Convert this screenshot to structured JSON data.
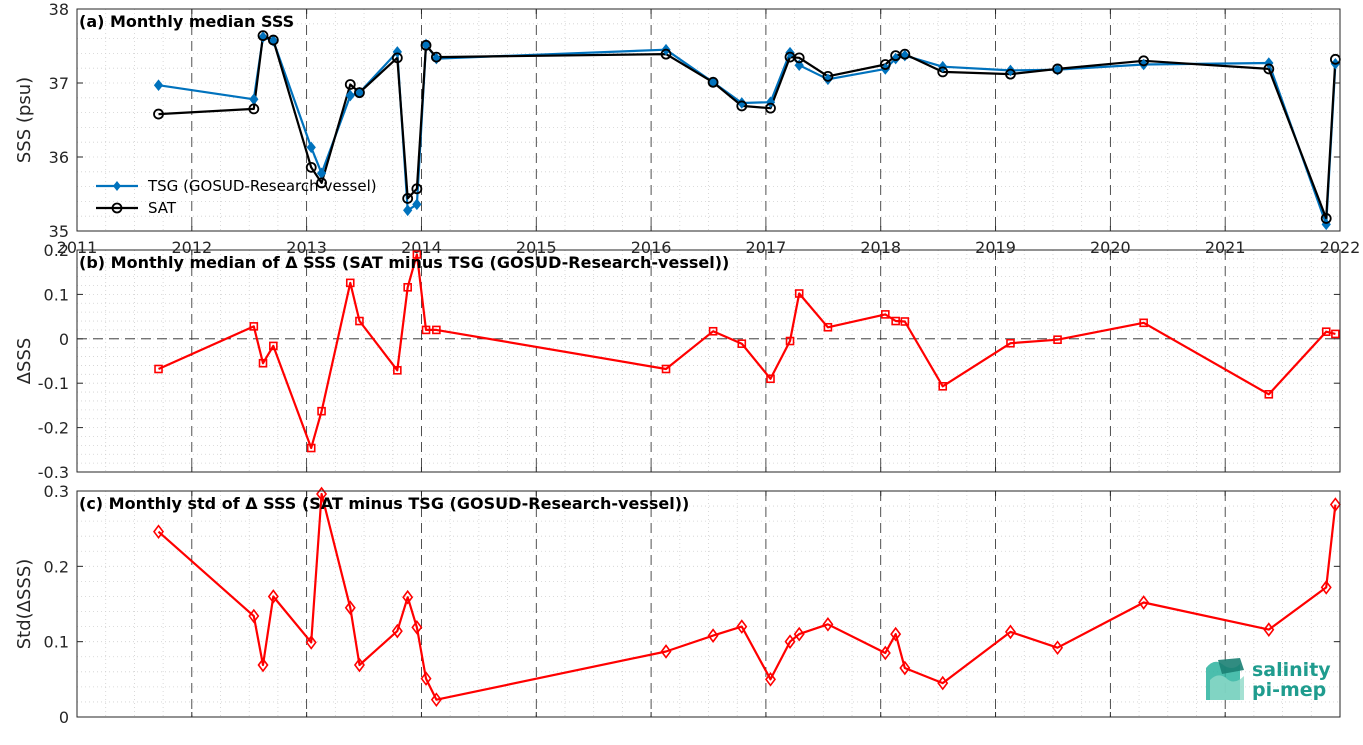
{
  "chart_data": [
    {
      "type": "line",
      "title": "(a) Monthly median SSS",
      "ylabel": "SSS (psu)",
      "xlim": [
        2011,
        2022
      ],
      "ylim": [
        35,
        38
      ],
      "xticks": [
        "2011",
        "2012",
        "2013",
        "2014",
        "2015",
        "2016",
        "2017",
        "2018",
        "2019",
        "2020",
        "2021",
        "2022"
      ],
      "yticks": [
        "35",
        "36",
        "37",
        "38"
      ],
      "grid": true,
      "legend": "lower-left",
      "series": [
        {
          "name": "TSG (GOSUD-Research-vessel)",
          "color": "#0072bd",
          "marker": "filled-diamond",
          "x": [
            2011.71,
            2012.54,
            2012.62,
            2012.71,
            2013.04,
            2013.13,
            2013.38,
            2013.46,
            2013.79,
            2013.88,
            2013.96,
            2014.04,
            2014.13,
            2016.13,
            2016.54,
            2016.79,
            2017.04,
            2017.21,
            2017.29,
            2017.54,
            2018.04,
            2018.13,
            2018.21,
            2018.54,
            2019.13,
            2019.54,
            2020.29,
            2021.38,
            2021.88,
            2021.96
          ],
          "y": [
            36.97,
            36.78,
            37.62,
            37.57,
            36.13,
            35.78,
            36.83,
            36.87,
            37.42,
            35.28,
            35.36,
            37.52,
            37.33,
            37.45,
            37.01,
            36.73,
            36.74,
            37.41,
            37.24,
            37.05,
            37.19,
            37.33,
            37.37,
            37.22,
            37.17,
            37.18,
            37.25,
            37.27,
            35.09,
            37.26
          ]
        },
        {
          "name": "SAT",
          "color": "#000000",
          "marker": "open-circle",
          "x": [
            2011.71,
            2012.54,
            2012.62,
            2012.71,
            2013.04,
            2013.13,
            2013.38,
            2013.46,
            2013.79,
            2013.88,
            2013.96,
            2014.04,
            2014.13,
            2016.13,
            2016.54,
            2016.79,
            2017.04,
            2017.21,
            2017.29,
            2017.54,
            2018.04,
            2018.13,
            2018.21,
            2018.54,
            2019.13,
            2019.54,
            2020.29,
            2021.38,
            2021.88,
            2021.96
          ],
          "y": [
            36.58,
            36.65,
            37.64,
            37.58,
            35.86,
            35.65,
            36.98,
            36.87,
            37.34,
            35.44,
            35.57,
            37.51,
            37.35,
            37.39,
            37.01,
            36.69,
            36.66,
            37.35,
            37.34,
            37.09,
            37.25,
            37.37,
            37.39,
            37.15,
            37.12,
            37.19,
            37.3,
            37.19,
            35.17,
            37.32
          ]
        }
      ]
    },
    {
      "type": "line",
      "title": "(b) Monthly median of Δ SSS (SAT minus TSG (GOSUD-Research-vessel))",
      "ylabel": "ΔSSS",
      "xlim": [
        2011,
        2022
      ],
      "ylim": [
        -0.3,
        0.2
      ],
      "yticks": [
        "-0.3",
        "-0.2",
        "-0.1",
        "0",
        "0.1",
        "0.2"
      ],
      "zero_line": "dashed",
      "grid": true,
      "series": [
        {
          "color": "#ff0000",
          "marker": "open-square",
          "x": [
            2011.71,
            2012.54,
            2012.62,
            2012.71,
            2013.04,
            2013.13,
            2013.38,
            2013.46,
            2013.79,
            2013.88,
            2013.96,
            2014.04,
            2014.13,
            2016.13,
            2016.54,
            2016.79,
            2017.04,
            2017.21,
            2017.29,
            2017.54,
            2018.04,
            2018.13,
            2018.21,
            2018.54,
            2019.13,
            2019.54,
            2020.29,
            2021.38,
            2021.88,
            2021.96
          ],
          "y": [
            -0.068,
            0.028,
            -0.055,
            -0.016,
            -0.246,
            -0.163,
            0.126,
            0.04,
            -0.071,
            0.116,
            0.19,
            0.02,
            0.02,
            -0.068,
            0.017,
            -0.011,
            -0.09,
            -0.005,
            0.102,
            0.026,
            0.055,
            0.04,
            0.039,
            -0.107,
            -0.01,
            -0.002,
            0.036,
            -0.125,
            0.016,
            0.011
          ]
        }
      ]
    },
    {
      "type": "line",
      "title": "(c) Monthly std of Δ SSS (SAT minus TSG (GOSUD-Research-vessel))",
      "ylabel": "Std(ΔSSS)",
      "xlim": [
        2011,
        2022
      ],
      "ylim": [
        0,
        0.3
      ],
      "yticks": [
        "0",
        "0.1",
        "0.2",
        "0.3"
      ],
      "grid": true,
      "series": [
        {
          "color": "#ff0000",
          "marker": "open-diamond",
          "x": [
            2011.71,
            2012.54,
            2012.62,
            2012.71,
            2013.04,
            2013.13,
            2013.38,
            2013.46,
            2013.79,
            2013.88,
            2013.96,
            2014.04,
            2014.13,
            2016.13,
            2016.54,
            2016.79,
            2017.04,
            2017.21,
            2017.29,
            2017.54,
            2018.04,
            2018.13,
            2018.21,
            2018.54,
            2019.13,
            2019.54,
            2020.29,
            2021.38,
            2021.88,
            2021.96
          ],
          "y": [
            0.246,
            0.134,
            0.069,
            0.16,
            0.099,
            0.296,
            0.145,
            0.069,
            0.114,
            0.159,
            0.119,
            0.051,
            0.023,
            0.087,
            0.108,
            0.12,
            0.05,
            0.1,
            0.11,
            0.123,
            0.085,
            0.11,
            0.065,
            0.045,
            0.113,
            0.092,
            0.152,
            0.116,
            0.172,
            0.282
          ]
        }
      ]
    }
  ],
  "logo": {
    "line1": "salinity",
    "line2": "pi-mep",
    "color": "#1f9c8e"
  }
}
